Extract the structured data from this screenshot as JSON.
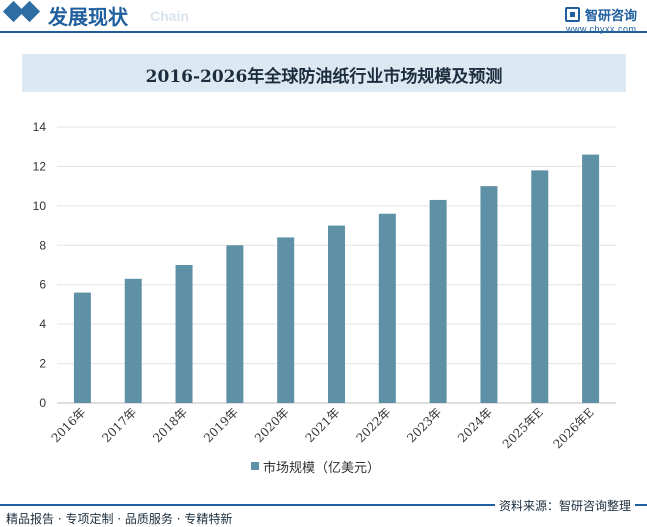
{
  "header": {
    "title": "发展现状",
    "subtitle": "Chain",
    "logo_name": "智研咨询",
    "logo_url": "www.chyxx.com"
  },
  "footer": {
    "left": "精品报告 · 专项定制 · 品质服务 · 专精特新",
    "source": "资料来源：智研咨询整理"
  },
  "chart_data": {
    "type": "bar",
    "title": "2016-2026年全球防油纸行业市场规模及预测",
    "categories": [
      "2016年",
      "2017年",
      "2018年",
      "2019年",
      "2020年",
      "2021年",
      "2022年",
      "2023年",
      "2024年",
      "2025年E",
      "2026年E"
    ],
    "series": [
      {
        "name": "市场规模（亿美元）",
        "values": [
          5.6,
          6.3,
          7.0,
          8.0,
          8.4,
          9.0,
          9.6,
          10.3,
          11.0,
          11.8,
          12.6
        ]
      }
    ],
    "ylim": [
      0,
      14
    ],
    "yticks": [
      0,
      2,
      4,
      6,
      8,
      10,
      12,
      14
    ],
    "xlabel": "",
    "ylabel": "",
    "legend": "bottom",
    "grid": true,
    "bar_color": "#5f91a6"
  }
}
